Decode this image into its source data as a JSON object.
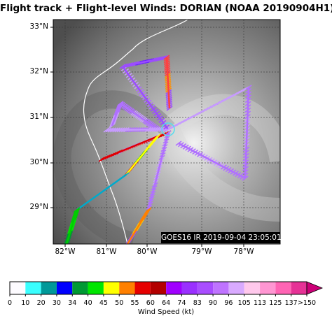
{
  "title": "Flight track + Flight-level Winds: DORIAN (NOAA 20190904H1)",
  "image_stamp": "GOES16 IR 2019-09-04 23:05:01Z",
  "map": {
    "lat_labels": [
      "33°N",
      "32°N",
      "31°N",
      "30°N",
      "29°N"
    ],
    "lon_labels": [
      "82°W",
      "81°W",
      "80°W",
      "79°W",
      "78°W"
    ],
    "storm_name": "DORIAN",
    "center_lat": 30.8,
    "center_lon": -79.6
  },
  "colorbar": {
    "label": "Wind Speed (kt)",
    "ticks": [
      "0",
      "10",
      "20",
      "30",
      "34",
      "40",
      "45",
      "50",
      "55",
      "60",
      "64",
      "74",
      "83",
      "90",
      "96",
      "105",
      "113",
      "125",
      "137",
      ">150"
    ],
    "colors": [
      "#fdfbff",
      "#3afefe",
      "#009999",
      "#0000ff",
      "#009933",
      "#00e600",
      "#ffff00",
      "#ff8000",
      "#e60000",
      "#b30000",
      "#a000ff",
      "#9a30ff",
      "#a94dff",
      "#bf73ff",
      "#d9aaff",
      "#ffc8ec",
      "#ff96d2",
      "#ff64b4",
      "#e63296"
    ]
  }
}
